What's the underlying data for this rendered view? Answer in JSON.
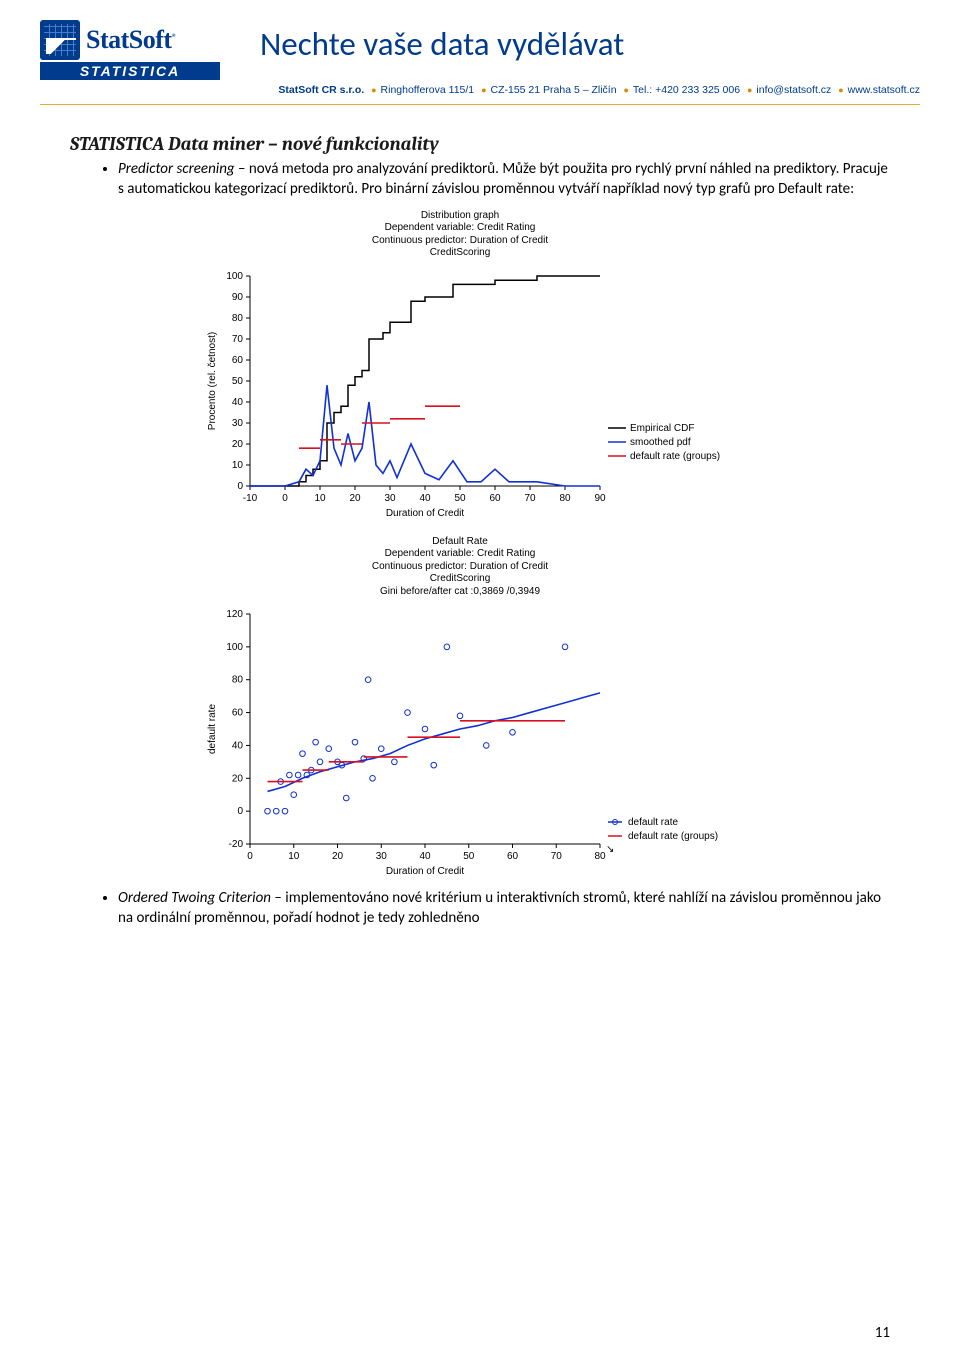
{
  "header": {
    "logo_word": "StatSoft",
    "logo_bar": "STATISTICA",
    "title": "Nechte vaše data vydělávat",
    "contact_company": "StatSoft CR s.r.o.",
    "contact_addr": "Ringhofferova 115/1",
    "contact_city": "CZ-155 21 Praha 5 – Zličín",
    "contact_tel": "Tel.: +420 233 325 006",
    "contact_email": "info@statsoft.cz",
    "contact_web": "www.statsoft.cz"
  },
  "section_title": "STATISTICA Data miner – nové funkcionality",
  "bullets": [
    {
      "term": "Predictor screening",
      "rest": " – nová metoda pro analyzování prediktorů. Může být použita pro rychlý první náhled na prediktory. Pracuje s automatickou kategorizací prediktorů. Pro binární závislou proměnnou vytváří například nový typ grafů pro Default rate:"
    },
    {
      "term": "Ordered Twoing Criterion",
      "rest": " – implementováno nové kritérium u interaktivních stromů, které nahlíží na závislou proměnnou jako na ordinální proměnnou, pořadí hodnot je tedy zohledněno"
    }
  ],
  "chart1": {
    "titles": [
      "Distribution graph",
      "Dependent variable: Credit Rating",
      "Continuous predictor: Duration of Credit",
      "CreditScoring"
    ],
    "ylabel": "Procento (rel. četnost)",
    "xlabel": "Duration of Credit",
    "ylim": [
      0,
      100
    ],
    "ytick_step": 10,
    "xlim": [
      -10,
      90
    ],
    "xtick_step": 10,
    "colors": {
      "cdf": "#000000",
      "pdf": "#1030d8",
      "default": "#d81020",
      "axis": "#000000",
      "bg": "#ffffff"
    },
    "legend": [
      "Empirical CDF",
      "smoothed pdf",
      "default rate (groups)"
    ],
    "cdf_points": [
      [
        -10,
        0
      ],
      [
        0,
        0
      ],
      [
        4,
        2
      ],
      [
        6,
        5
      ],
      [
        8,
        8
      ],
      [
        10,
        12
      ],
      [
        12,
        30
      ],
      [
        14,
        35
      ],
      [
        16,
        38
      ],
      [
        18,
        48
      ],
      [
        20,
        52
      ],
      [
        22,
        55
      ],
      [
        24,
        70
      ],
      [
        28,
        73
      ],
      [
        30,
        78
      ],
      [
        36,
        88
      ],
      [
        40,
        90
      ],
      [
        48,
        96
      ],
      [
        60,
        98
      ],
      [
        72,
        100
      ],
      [
        90,
        100
      ]
    ],
    "pdf_points": [
      [
        -10,
        0
      ],
      [
        0,
        0
      ],
      [
        4,
        2
      ],
      [
        6,
        8
      ],
      [
        8,
        5
      ],
      [
        10,
        12
      ],
      [
        12,
        48
      ],
      [
        14,
        18
      ],
      [
        16,
        10
      ],
      [
        18,
        25
      ],
      [
        20,
        12
      ],
      [
        22,
        18
      ],
      [
        24,
        40
      ],
      [
        26,
        10
      ],
      [
        28,
        6
      ],
      [
        30,
        12
      ],
      [
        32,
        4
      ],
      [
        36,
        20
      ],
      [
        40,
        6
      ],
      [
        44,
        3
      ],
      [
        48,
        12
      ],
      [
        52,
        2
      ],
      [
        56,
        2
      ],
      [
        60,
        8
      ],
      [
        64,
        2
      ],
      [
        72,
        2
      ],
      [
        80,
        0
      ],
      [
        90,
        0
      ]
    ],
    "default_segs": [
      [
        [
          4,
          18
        ],
        [
          10,
          18
        ]
      ],
      [
        [
          10,
          22
        ],
        [
          16,
          22
        ]
      ],
      [
        [
          16,
          20
        ],
        [
          22,
          20
        ]
      ],
      [
        [
          22,
          30
        ],
        [
          30,
          30
        ]
      ],
      [
        [
          30,
          32
        ],
        [
          40,
          32
        ]
      ],
      [
        [
          40,
          38
        ],
        [
          50,
          38
        ]
      ]
    ]
  },
  "chart2": {
    "titles": [
      "Default Rate",
      "Dependent variable: Credit Rating",
      "Continuous predictor: Duration of Credit",
      "CreditScoring",
      "Gini before/after cat :0,3869 /0,3949"
    ],
    "ylabel": "default rate",
    "xlabel": "Duration of Credit",
    "ylim": [
      -20,
      120
    ],
    "ytick_step": 20,
    "xlim": [
      0,
      80
    ],
    "xtick_step": 10,
    "colors": {
      "line": "#1030d8",
      "marker": "#1030d8",
      "default": "#d81020",
      "axis": "#000000",
      "bg": "#ffffff"
    },
    "legend": [
      "default rate",
      "default rate (groups)"
    ],
    "points": [
      [
        4,
        0
      ],
      [
        6,
        0
      ],
      [
        7,
        18
      ],
      [
        8,
        0
      ],
      [
        9,
        22
      ],
      [
        10,
        10
      ],
      [
        11,
        22
      ],
      [
        12,
        35
      ],
      [
        13,
        22
      ],
      [
        14,
        25
      ],
      [
        15,
        42
      ],
      [
        16,
        30
      ],
      [
        18,
        38
      ],
      [
        20,
        30
      ],
      [
        21,
        28
      ],
      [
        22,
        8
      ],
      [
        24,
        42
      ],
      [
        26,
        32
      ],
      [
        27,
        80
      ],
      [
        28,
        20
      ],
      [
        30,
        38
      ],
      [
        33,
        30
      ],
      [
        36,
        60
      ],
      [
        40,
        50
      ],
      [
        42,
        28
      ],
      [
        45,
        100
      ],
      [
        48,
        58
      ],
      [
        54,
        40
      ],
      [
        60,
        48
      ],
      [
        72,
        100
      ]
    ],
    "line_points": [
      [
        4,
        12
      ],
      [
        8,
        15
      ],
      [
        12,
        20
      ],
      [
        16,
        24
      ],
      [
        20,
        27
      ],
      [
        24,
        30
      ],
      [
        28,
        32
      ],
      [
        32,
        35
      ],
      [
        36,
        40
      ],
      [
        40,
        44
      ],
      [
        44,
        47
      ],
      [
        48,
        50
      ],
      [
        52,
        52
      ],
      [
        56,
        55
      ],
      [
        60,
        57
      ],
      [
        64,
        60
      ],
      [
        68,
        63
      ],
      [
        72,
        66
      ],
      [
        76,
        69
      ],
      [
        80,
        72
      ]
    ],
    "default_segs": [
      [
        [
          4,
          18
        ],
        [
          12,
          18
        ]
      ],
      [
        [
          12,
          25
        ],
        [
          18,
          25
        ]
      ],
      [
        [
          18,
          30
        ],
        [
          26,
          30
        ]
      ],
      [
        [
          26,
          33
        ],
        [
          36,
          33
        ]
      ],
      [
        [
          36,
          45
        ],
        [
          48,
          45
        ]
      ],
      [
        [
          48,
          55
        ],
        [
          72,
          55
        ]
      ]
    ]
  },
  "page_number": "11"
}
